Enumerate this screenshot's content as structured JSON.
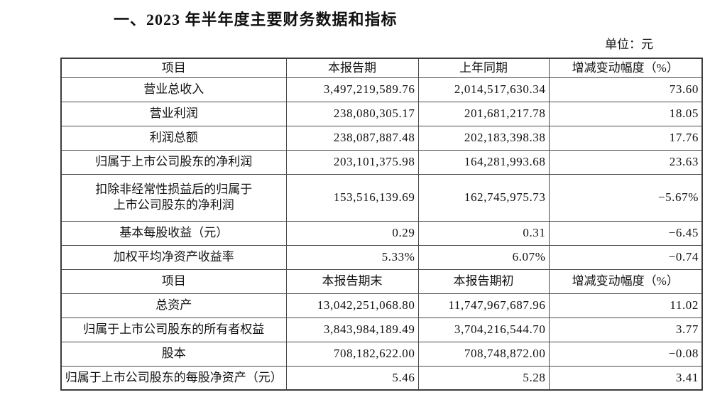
{
  "page": {
    "title": "一、2023 年半年度主要财务数据和指标",
    "unit_label": "单位：元"
  },
  "sections": [
    {
      "headers": [
        "项目",
        "本报告期",
        "上年同期",
        "增减变动幅度（%）"
      ],
      "rows": [
        {
          "item": "营业总收入",
          "current": "3,497,219,589.76",
          "prior": "2,014,517,630.34",
          "change": "73.60"
        },
        {
          "item": "营业利润",
          "current": "238,080,305.17",
          "prior": "201,681,217.78",
          "change": "18.05"
        },
        {
          "item": "利润总额",
          "current": "238,087,887.48",
          "prior": "202,183,398.38",
          "change": "17.76"
        },
        {
          "item": "归属于上市公司股东的净利润",
          "current": "203,101,375.98",
          "prior": "164,281,993.68",
          "change": "23.63"
        },
        {
          "item": "扣除非经常性损益后的归属于\n上市公司股东的净利润",
          "current": "153,516,139.69",
          "prior": "162,745,975.73",
          "change": "−5.67%"
        },
        {
          "item": "基本每股收益（元）",
          "current": "0.29",
          "prior": "0.31",
          "change": "−6.45"
        },
        {
          "item": "加权平均净资产收益率",
          "current": "5.33%",
          "prior": "6.07%",
          "change": "−0.74"
        }
      ]
    },
    {
      "headers": [
        "项目",
        "本报告期末",
        "本报告期初",
        "增减变动幅度（%）"
      ],
      "rows": [
        {
          "item": "总资产",
          "current": "13,042,251,068.80",
          "prior": "11,747,967,687.96",
          "change": "11.02"
        },
        {
          "item": "归属于上市公司股东的所有者权益",
          "current": "3,843,984,189.49",
          "prior": "3,704,216,544.70",
          "change": "3.77"
        },
        {
          "item": "股本",
          "current": "708,182,622.00",
          "prior": "708,748,872.00",
          "change": "−0.08"
        },
        {
          "item": "归属于上市公司股东的每股净资产（元）",
          "current": "5.46",
          "prior": "5.28",
          "change": "3.41"
        }
      ]
    }
  ]
}
